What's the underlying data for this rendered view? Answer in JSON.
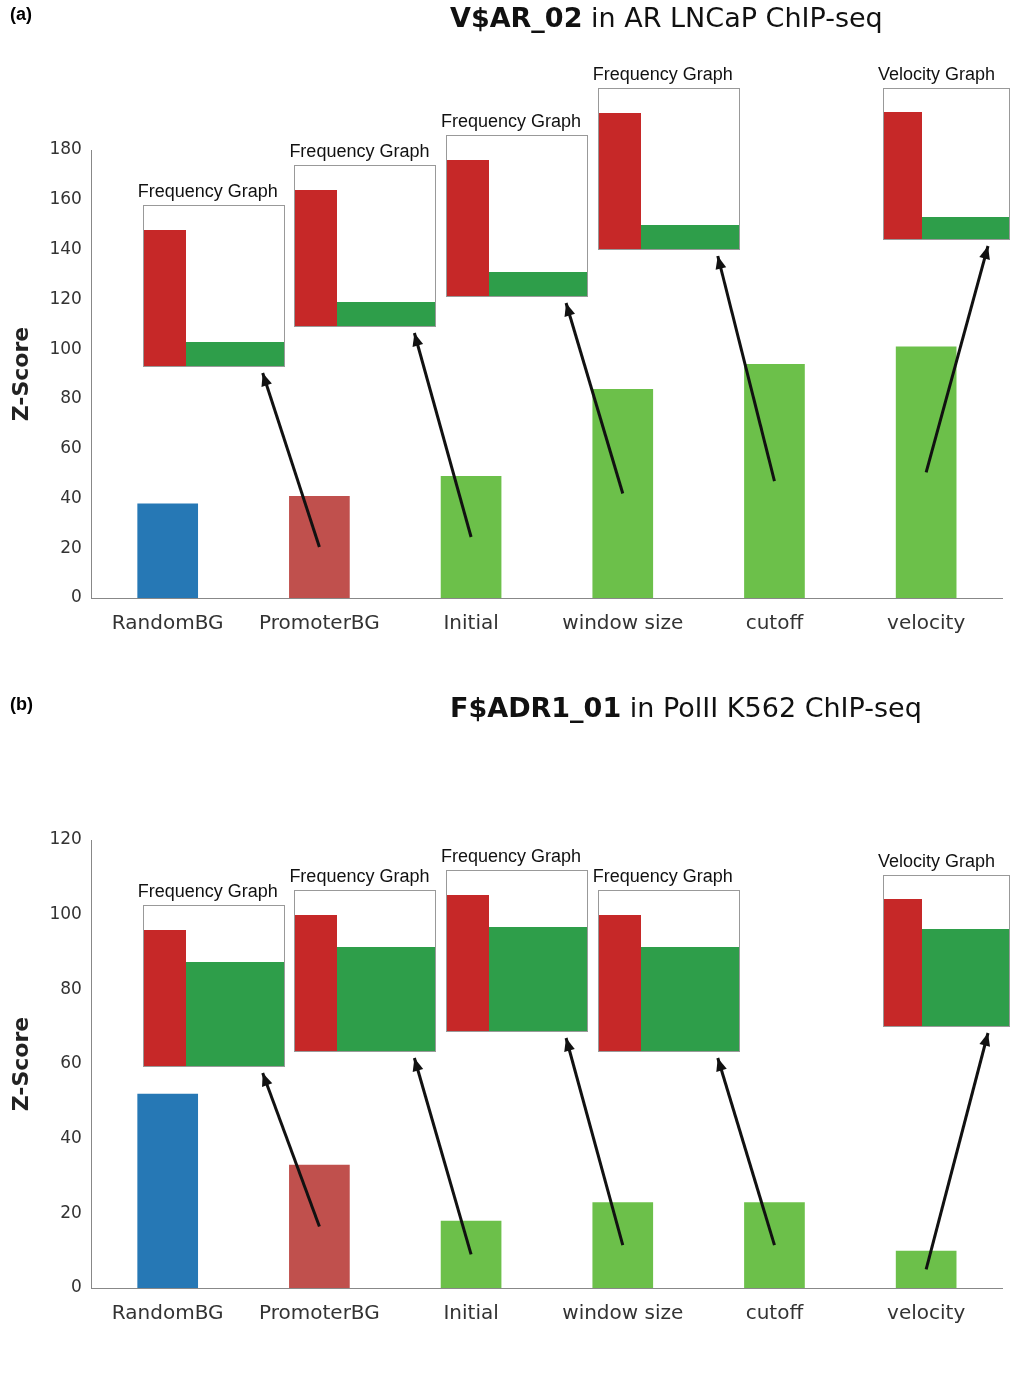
{
  "chart_data": [
    {
      "type": "bar",
      "title": "V$AR_02 in AR LNCaP ChIP-seq",
      "subtitle": "(a)",
      "ylabel": "Z-Score",
      "categories": [
        "RandomBG",
        "PromoterBG",
        "Initial",
        "window size",
        "cutoff",
        "velocity"
      ],
      "values": [
        38,
        41,
        49,
        84,
        94,
        101
      ],
      "colors": [
        "#2678b5",
        "#c0504d",
        "#6cc04a",
        "#6cc04a",
        "#6cc04a",
        "#6cc04a"
      ],
      "ylim": [
        0,
        180
      ],
      "yticks": [
        0,
        20,
        40,
        60,
        80,
        100,
        120,
        140,
        160,
        180
      ],
      "grid": false,
      "legend": false,
      "annotations": [
        "Frequency Graph",
        "Frequency Graph",
        "Frequency Graph",
        "Frequency Graph",
        "Velocity Graph"
      ]
    },
    {
      "type": "bar",
      "title": "F$ADR1_01 in PolII K562 ChIP-seq",
      "subtitle": "(b)",
      "ylabel": "Z-Score",
      "categories": [
        "RandomBG",
        "PromoterBG",
        "Initial",
        "window size",
        "cutoff",
        "velocity"
      ],
      "values": [
        52,
        33,
        18,
        23,
        23,
        10
      ],
      "colors": [
        "#2678b5",
        "#c0504d",
        "#6cc04a",
        "#6cc04a",
        "#6cc04a",
        "#6cc04a"
      ],
      "ylim": [
        0,
        120
      ],
      "yticks": [
        0,
        20,
        40,
        60,
        80,
        100,
        120
      ],
      "grid": false,
      "legend": false,
      "annotations": [
        "Frequency Graph",
        "Frequency Graph",
        "Frequency Graph",
        "Frequency Graph",
        "Velocity Graph"
      ]
    }
  ]
}
